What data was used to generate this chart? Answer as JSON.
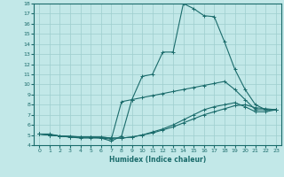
{
  "title": "",
  "xlabel": "Humidex (Indice chaleur)",
  "xlim": [
    -0.5,
    23.5
  ],
  "ylim": [
    4,
    18
  ],
  "xticks": [
    0,
    1,
    2,
    3,
    4,
    5,
    6,
    7,
    8,
    9,
    10,
    11,
    12,
    13,
    14,
    15,
    16,
    17,
    18,
    19,
    20,
    21,
    22,
    23
  ],
  "yticks": [
    4,
    5,
    6,
    7,
    8,
    9,
    10,
    11,
    12,
    13,
    14,
    15,
    16,
    17,
    18
  ],
  "background_color": "#c2e8e8",
  "grid_color": "#9ecece",
  "line_color": "#1a6b6b",
  "lines": [
    {
      "x": [
        0,
        1,
        2,
        3,
        4,
        5,
        6,
        7,
        8,
        9,
        10,
        11,
        12,
        13,
        14,
        15,
        16,
        17,
        18,
        19,
        20,
        21,
        22,
        23
      ],
      "y": [
        5.1,
        5.1,
        4.9,
        4.8,
        4.8,
        4.8,
        4.7,
        4.4,
        4.9,
        8.5,
        10.8,
        11.0,
        13.2,
        13.2,
        18.0,
        17.5,
        16.8,
        16.7,
        14.2,
        11.5,
        9.5,
        8.0,
        7.5,
        7.5
      ]
    },
    {
      "x": [
        0,
        1,
        2,
        3,
        4,
        5,
        6,
        7,
        8,
        9,
        10,
        11,
        12,
        13,
        14,
        15,
        16,
        17,
        18,
        19,
        20,
        21,
        22,
        23
      ],
      "y": [
        5.1,
        5.0,
        4.9,
        4.8,
        4.7,
        4.7,
        4.7,
        4.6,
        8.3,
        8.5,
        8.7,
        8.9,
        9.1,
        9.3,
        9.5,
        9.7,
        9.9,
        10.1,
        10.3,
        9.5,
        8.5,
        7.5,
        7.5,
        7.5
      ]
    },
    {
      "x": [
        0,
        1,
        2,
        3,
        4,
        5,
        6,
        7,
        8,
        9,
        10,
        11,
        12,
        13,
        14,
        15,
        16,
        17,
        18,
        19,
        20,
        21,
        22,
        23
      ],
      "y": [
        5.1,
        5.0,
        4.9,
        4.8,
        4.8,
        4.8,
        4.8,
        4.7,
        4.7,
        4.8,
        5.0,
        5.3,
        5.6,
        6.0,
        6.5,
        7.0,
        7.5,
        7.8,
        8.0,
        8.2,
        7.8,
        7.3,
        7.3,
        7.5
      ]
    },
    {
      "x": [
        0,
        1,
        2,
        3,
        4,
        5,
        6,
        7,
        8,
        9,
        10,
        11,
        12,
        13,
        14,
        15,
        16,
        17,
        18,
        19,
        20,
        21,
        22,
        23
      ],
      "y": [
        5.1,
        5.0,
        4.9,
        4.9,
        4.8,
        4.8,
        4.8,
        4.7,
        4.7,
        4.8,
        5.0,
        5.2,
        5.5,
        5.8,
        6.2,
        6.6,
        7.0,
        7.3,
        7.6,
        7.9,
        8.0,
        7.7,
        7.6,
        7.5
      ]
    }
  ]
}
